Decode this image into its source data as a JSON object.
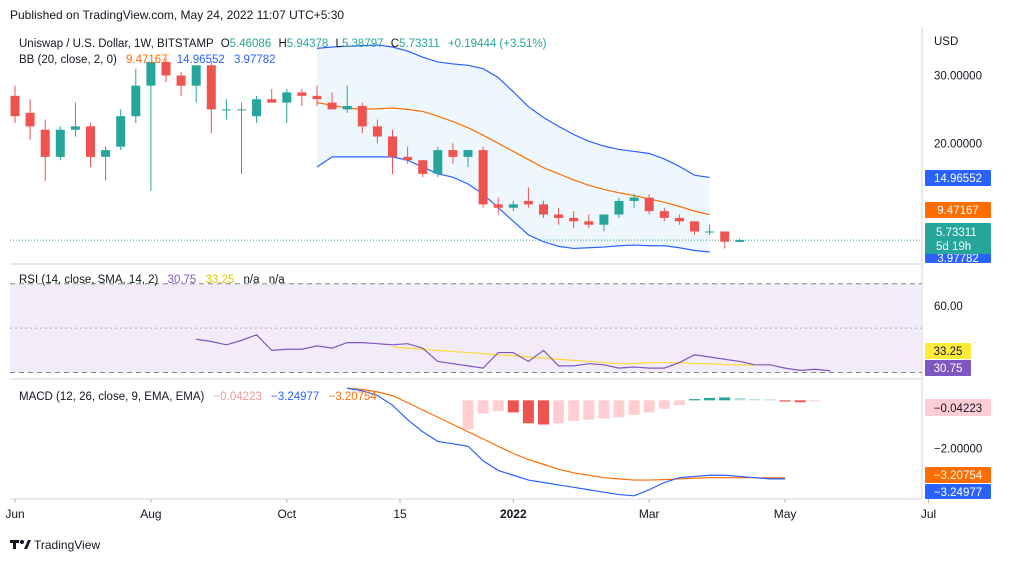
{
  "header": {
    "published": "Published on TradingView.com, May 24, 2022 11:07 UTC+5:30"
  },
  "legend": {
    "symbol": "Uniswap / U.S. Dollar, 1W, BITSTAMP",
    "o_label": "O",
    "o": "5.46086",
    "h_label": "H",
    "h": "5.94378",
    "l_label": "L",
    "l": "5.38797",
    "c_label": "C",
    "c": "5.73311",
    "change": "+0.19444 (+3.51%)",
    "bb_label": "BB (20, close, 2, 0)",
    "bb_basis": "9.47167",
    "bb_upper": "14.96552",
    "bb_lower": "3.97782",
    "rsi_label": "RSI (14, close, SMA, 14, 2)",
    "rsi_value": "30.75",
    "rsi_ma": "33.25",
    "rsi_na1": "n/a",
    "rsi_na2": "n/a",
    "macd_label": "MACD (12, 26, close, 9, EMA, EMA)",
    "macd_hist": "−0.04223",
    "macd_line": "−3.24977",
    "macd_signal": "−3.20754"
  },
  "price_axis": {
    "currency": "USD",
    "ticks": [
      {
        "v": 30,
        "label": "30.00000"
      },
      {
        "v": 20,
        "label": "20.00000"
      }
    ],
    "badges": {
      "upper": "14.96552",
      "basis": "9.47167",
      "last": "5.73311",
      "countdown": "5d 19h",
      "lower": "3.97782"
    }
  },
  "rsi_axis": {
    "ticks": [
      {
        "v": 60,
        "label": "60.00"
      }
    ],
    "badge_ma": "33.25",
    "badge_rsi": "30.75"
  },
  "macd_axis": {
    "ticks": [
      {
        "v": -2,
        "label": "−2.00000"
      }
    ],
    "badge_hist": "−0.04223",
    "badge_signal": "−3.20754",
    "badge_macd": "−3.24977"
  },
  "time_axis": {
    "labels": [
      {
        "week": 0.0,
        "text": "Jun"
      },
      {
        "week": 9.0,
        "text": "Aug"
      },
      {
        "week": 18.0,
        "text": "Oct"
      },
      {
        "week": 25.5,
        "text": "15"
      },
      {
        "week": 33.0,
        "text": "2022"
      },
      {
        "week": 42.0,
        "text": "Mar"
      },
      {
        "week": 51.0,
        "text": "May"
      },
      {
        "week": 60.5,
        "text": "Jul"
      }
    ]
  },
  "footer": {
    "brand": "TradingView"
  },
  "colors": {
    "up": "#26a69a",
    "down": "#ef5350",
    "bb_band": "#2962ff",
    "bb_basis": "#ff6d00",
    "bb_fill": "#e3f2fd",
    "rsi": "#7e57c2",
    "rsi_ma": "#fdd835",
    "rsi_bg": "#ede7f6",
    "macd": "#2962ff",
    "signal": "#ff6d00",
    "hist_up": "#26a69a",
    "hist_down": "#ef5350",
    "hist_down_light": "#ffcdd2",
    "hist_up_light": "#b2dfdb"
  },
  "chart_data": {
    "type": "candlestick",
    "symbol": "Uniswap / U.S. Dollar",
    "interval": "1W",
    "exchange": "BITSTAMP",
    "ylim": [
      2.5,
      37
    ],
    "candles": [
      {
        "o": 27.0,
        "h": 28.5,
        "l": 23.0,
        "c": 24.0
      },
      {
        "o": 24.5,
        "h": 26.5,
        "l": 20.5,
        "c": 22.5
      },
      {
        "o": 22.0,
        "h": 23.5,
        "l": 14.5,
        "c": 18.0
      },
      {
        "o": 18.0,
        "h": 22.5,
        "l": 17.5,
        "c": 22.0
      },
      {
        "o": 22.0,
        "h": 26.0,
        "l": 21.0,
        "c": 22.5
      },
      {
        "o": 22.5,
        "h": 23.0,
        "l": 16.5,
        "c": 18.0
      },
      {
        "o": 18.0,
        "h": 19.5,
        "l": 14.5,
        "c": 19.0
      },
      {
        "o": 19.5,
        "h": 25.0,
        "l": 19.0,
        "c": 24.0
      },
      {
        "o": 24.0,
        "h": 31.0,
        "l": 23.0,
        "c": 28.5
      },
      {
        "o": 28.5,
        "h": 32.0,
        "l": 13.0,
        "c": 32.0
      },
      {
        "o": 32.0,
        "h": 32.5,
        "l": 29.0,
        "c": 30.0
      },
      {
        "o": 30.0,
        "h": 30.5,
        "l": 27.0,
        "c": 28.5
      },
      {
        "o": 28.5,
        "h": 31.5,
        "l": 26.0,
        "c": 31.5
      },
      {
        "o": 31.5,
        "h": 32.0,
        "l": 21.5,
        "c": 25.0
      },
      {
        "o": 25.0,
        "h": 26.5,
        "l": 23.5,
        "c": 25.0
      },
      {
        "o": 25.0,
        "h": 26.0,
        "l": 15.5,
        "c": 25.0
      },
      {
        "o": 24.0,
        "h": 27.0,
        "l": 23.0,
        "c": 26.5
      },
      {
        "o": 26.5,
        "h": 28.0,
        "l": 26.0,
        "c": 26.0
      },
      {
        "o": 26.0,
        "h": 28.0,
        "l": 23.0,
        "c": 27.5
      },
      {
        "o": 27.5,
        "h": 28.0,
        "l": 25.5,
        "c": 27.0
      },
      {
        "o": 27.0,
        "h": 28.5,
        "l": 25.5,
        "c": 26.5
      },
      {
        "o": 26.0,
        "h": 27.5,
        "l": 25.0,
        "c": 25.0
      },
      {
        "o": 25.0,
        "h": 28.5,
        "l": 24.5,
        "c": 25.5
      },
      {
        "o": 25.5,
        "h": 26.0,
        "l": 21.5,
        "c": 22.5
      },
      {
        "o": 22.5,
        "h": 23.5,
        "l": 20.0,
        "c": 21.0
      },
      {
        "o": 21.0,
        "h": 22.0,
        "l": 15.5,
        "c": 18.0
      },
      {
        "o": 18.0,
        "h": 19.5,
        "l": 17.0,
        "c": 17.5
      },
      {
        "o": 17.5,
        "h": 17.5,
        "l": 15.0,
        "c": 15.5
      },
      {
        "o": 15.5,
        "h": 19.5,
        "l": 15.0,
        "c": 19.0
      },
      {
        "o": 19.0,
        "h": 20.0,
        "l": 17.0,
        "c": 18.0
      },
      {
        "o": 18.0,
        "h": 19.0,
        "l": 16.5,
        "c": 19.0
      },
      {
        "o": 19.0,
        "h": 19.5,
        "l": 10.5,
        "c": 11.0
      },
      {
        "o": 11.0,
        "h": 12.0,
        "l": 9.5,
        "c": 10.5
      },
      {
        "o": 10.5,
        "h": 11.5,
        "l": 10.0,
        "c": 11.0
      },
      {
        "o": 11.5,
        "h": 13.5,
        "l": 10.5,
        "c": 11.0
      },
      {
        "o": 11.0,
        "h": 11.5,
        "l": 9.0,
        "c": 9.5
      },
      {
        "o": 9.5,
        "h": 10.5,
        "l": 8.0,
        "c": 9.0
      },
      {
        "o": 9.0,
        "h": 10.0,
        "l": 7.5,
        "c": 8.5
      },
      {
        "o": 8.5,
        "h": 9.5,
        "l": 7.5,
        "c": 8.0
      },
      {
        "o": 8.0,
        "h": 9.5,
        "l": 7.0,
        "c": 9.5
      },
      {
        "o": 9.5,
        "h": 12.0,
        "l": 9.0,
        "c": 11.5
      },
      {
        "o": 11.5,
        "h": 12.5,
        "l": 10.5,
        "c": 12.0
      },
      {
        "o": 12.0,
        "h": 12.5,
        "l": 9.5,
        "c": 10.0
      },
      {
        "o": 10.0,
        "h": 10.5,
        "l": 8.5,
        "c": 9.0
      },
      {
        "o": 9.0,
        "h": 9.5,
        "l": 8.0,
        "c": 8.5
      },
      {
        "o": 8.5,
        "h": 8.5,
        "l": 6.5,
        "c": 7.0
      },
      {
        "o": 7.0,
        "h": 8.0,
        "l": 6.5,
        "c": 7.0
      },
      {
        "o": 7.0,
        "h": 7.0,
        "l": 4.5,
        "c": 5.5
      },
      {
        "o": 5.46086,
        "h": 5.94378,
        "l": 5.38797,
        "c": 5.73311
      }
    ],
    "bb_start": 20,
    "bb_upper": [
      34.0,
      34.2,
      34.3,
      34.4,
      34.5,
      34.2,
      33.6,
      32.7,
      32.0,
      31.7,
      31.5,
      31.0,
      29.7,
      27.6,
      25.4,
      23.8,
      22.5,
      21.3,
      20.3,
      19.6,
      19.1,
      18.8,
      18.5,
      17.7,
      16.6,
      15.3,
      14.96552
    ],
    "bb_basis": [
      26.0,
      25.6,
      25.2,
      25.0,
      25.1,
      25.2,
      25.0,
      24.7,
      24.0,
      23.2,
      22.3,
      21.2,
      20.0,
      18.8,
      17.6,
      16.4,
      15.5,
      14.6,
      13.8,
      13.2,
      12.7,
      12.3,
      11.8,
      11.3,
      10.7,
      10.0,
      9.47167
    ],
    "bb_lower": [
      16.5,
      18.0,
      18.0,
      18.0,
      18.0,
      18.0,
      17.5,
      16.5,
      15.5,
      15.0,
      14.0,
      12.5,
      10.5,
      8.5,
      6.5,
      5.5,
      4.8,
      4.5,
      4.6,
      4.7,
      4.9,
      5.0,
      4.9,
      4.9,
      4.6,
      4.2,
      3.97782
    ],
    "rsi": {
      "start": 12,
      "ylim": [
        28,
        78
      ],
      "values": [
        45.0,
        44.0,
        42.5,
        44.5,
        47.0,
        40.0,
        40.5,
        40.5,
        42.0,
        41.0,
        43.5,
        43.5,
        43.0,
        42.5,
        43.0,
        41.0,
        35.0,
        34.0,
        33.0,
        32.0,
        39.0,
        39.0,
        35.0,
        40.0,
        33.0,
        33.0,
        34.0,
        33.5,
        32.0,
        32.5,
        32.0,
        32.0,
        34.5,
        38.0,
        37.0,
        36.0,
        35.0,
        33.5,
        33.5,
        32.0,
        31.0,
        31.5,
        30.75
      ],
      "ma_start": 25,
      "ma": [
        41.5,
        41.0,
        40.5,
        40.0,
        39.5,
        39.0,
        38.5,
        38.0,
        37.5,
        37.0,
        36.5,
        36.0,
        35.5,
        35.0,
        34.5,
        34.0,
        34.0,
        34.5,
        34.5,
        34.5,
        34.0,
        34.0,
        33.5,
        33.5,
        33.25
      ],
      "levels": [
        70,
        50,
        30
      ]
    },
    "macd": {
      "start": 22,
      "ylim": [
        -4.0,
        0.8
      ],
      "macd": [
        0.5,
        0.4,
        0.2,
        -0.2,
        -0.8,
        -1.3,
        -1.7,
        -1.8,
        -1.9,
        -2.5,
        -2.9,
        -3.1,
        -3.3,
        -3.4,
        -3.5,
        -3.6,
        -3.7,
        -3.8,
        -3.9,
        -3.95,
        -3.7,
        -3.4,
        -3.2,
        -3.15,
        -3.1,
        -3.1,
        -3.15,
        -3.2,
        -3.25,
        -3.24977
      ],
      "signal": [
        0.5,
        0.45,
        0.35,
        0.2,
        -0.1,
        -0.4,
        -0.7,
        -1.0,
        -1.3,
        -1.6,
        -1.9,
        -2.2,
        -2.45,
        -2.65,
        -2.85,
        -3.0,
        -3.1,
        -3.2,
        -3.25,
        -3.3,
        -3.3,
        -3.28,
        -3.25,
        -3.22,
        -3.2,
        -3.2,
        -3.2,
        -3.2,
        -3.21,
        -3.20754
      ],
      "hist_start": 30,
      "histogram": [
        -1.2,
        -0.55,
        -0.45,
        -0.5,
        -0.95,
        -1.0,
        -0.95,
        -0.85,
        -0.8,
        -0.75,
        -0.7,
        -0.6,
        -0.5,
        -0.35,
        -0.2,
        0.05,
        0.1,
        0.12,
        0.1,
        0.05,
        0.04,
        -0.05,
        -0.08,
        -0.04223
      ]
    }
  }
}
